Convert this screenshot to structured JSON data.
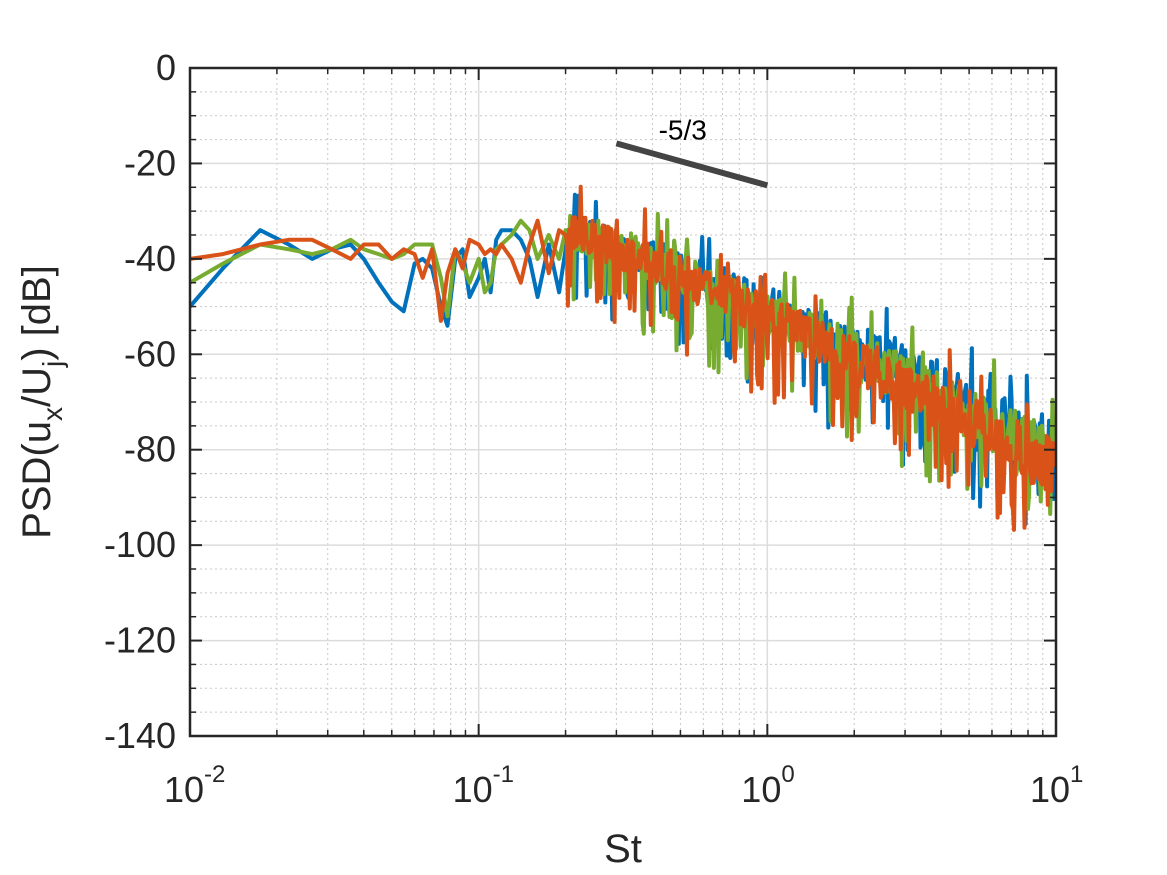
{
  "chart_data": {
    "type": "line",
    "title": "",
    "xlabel": "St",
    "ylabel": "PSD(u_x/U_j) [dB]",
    "ylabel_parts": {
      "prefix": "PSD(u",
      "sub1": "x",
      "mid": "/U",
      "sub2": "j",
      "suffix": ") [dB]"
    },
    "xscale": "log",
    "xlim": [
      0.01,
      10
    ],
    "ylim": [
      -140,
      0
    ],
    "grid": true,
    "minor_grid": true,
    "legend": "none",
    "x_ticks": [
      {
        "value": 0.01,
        "base": "10",
        "exp": "-2"
      },
      {
        "value": 0.1,
        "base": "10",
        "exp": "-1"
      },
      {
        "value": 1,
        "base": "10",
        "exp": "0"
      },
      {
        "value": 10,
        "base": "10",
        "exp": "1"
      }
    ],
    "y_ticks": [
      {
        "value": 0,
        "label": "0"
      },
      {
        "value": -20,
        "label": "-20"
      },
      {
        "value": -40,
        "label": "-40"
      },
      {
        "value": -60,
        "label": "-60"
      },
      {
        "value": -80,
        "label": "-80"
      },
      {
        "value": -100,
        "label": "-100"
      },
      {
        "value": -120,
        "label": "-120"
      },
      {
        "value": -140,
        "label": "-140"
      }
    ],
    "series": [
      {
        "color": "#0072BD",
        "x": [
          0.01,
          0.013,
          0.0175,
          0.022,
          0.0265,
          0.031,
          0.036,
          0.04,
          0.045,
          0.05,
          0.055,
          0.06,
          0.064,
          0.069,
          0.074,
          0.078,
          0.083,
          0.088,
          0.093,
          0.1,
          0.105,
          0.11,
          0.115,
          0.12,
          0.13,
          0.14,
          0.15,
          0.16,
          0.175,
          0.19,
          0.2
        ],
        "values": [
          -50,
          -42,
          -34,
          -37,
          -40,
          -38,
          -37,
          -40,
          -45,
          -49,
          -51,
          -41,
          -40,
          -42,
          -50,
          -54,
          -40,
          -38,
          -48,
          -44,
          -40,
          -47,
          -36,
          -34,
          -34,
          -36,
          -40,
          -48,
          -37,
          -47,
          -38
        ],
        "noise": {
          "x_start": 0.2,
          "x_end": 10,
          "points": 420,
          "center_start": -34,
          "center_end": -80,
          "amp_start": 4,
          "amp_end": 6,
          "dip_start": 12,
          "dip_end": 16,
          "seed": 11
        }
      },
      {
        "color": "#77AC30",
        "x": [
          0.01,
          0.013,
          0.0175,
          0.022,
          0.0265,
          0.031,
          0.036,
          0.04,
          0.045,
          0.05,
          0.055,
          0.06,
          0.064,
          0.069,
          0.074,
          0.078,
          0.083,
          0.088,
          0.093,
          0.1,
          0.105,
          0.11,
          0.115,
          0.12,
          0.13,
          0.14,
          0.15,
          0.16,
          0.175,
          0.19,
          0.2
        ],
        "values": [
          -45,
          -41,
          -37,
          -38,
          -39,
          -38,
          -36,
          -38,
          -39,
          -40,
          -39,
          -37,
          -37,
          -37,
          -44,
          -52,
          -38,
          -41,
          -45,
          -40,
          -47,
          -45,
          -38,
          -37,
          -35,
          -32,
          -34,
          -40,
          -35,
          -40,
          -34
        ],
        "noise": {
          "x_start": 0.2,
          "x_end": 10,
          "points": 420,
          "center_start": -34,
          "center_end": -82,
          "amp_start": 4,
          "amp_end": 6,
          "dip_start": 12,
          "dip_end": 16,
          "seed": 23
        }
      },
      {
        "color": "#D95319",
        "x": [
          0.01,
          0.013,
          0.0175,
          0.022,
          0.0265,
          0.031,
          0.036,
          0.04,
          0.045,
          0.05,
          0.055,
          0.06,
          0.064,
          0.069,
          0.074,
          0.078,
          0.083,
          0.088,
          0.093,
          0.1,
          0.105,
          0.11,
          0.115,
          0.12,
          0.13,
          0.14,
          0.15,
          0.16,
          0.175,
          0.19,
          0.2
        ],
        "values": [
          -40,
          -39,
          -37,
          -36,
          -36,
          -38,
          -40,
          -37,
          -37,
          -40,
          -38,
          -39,
          -44,
          -38,
          -53,
          -43,
          -38,
          -42,
          -36,
          -37,
          -39,
          -38,
          -39,
          -37,
          -40,
          -45,
          -37,
          -32,
          -43,
          -34,
          -35
        ],
        "noise": {
          "x_start": 0.2,
          "x_end": 10,
          "points": 420,
          "center_start": -34,
          "center_end": -84,
          "amp_start": 4,
          "amp_end": 6,
          "dip_start": 12,
          "dip_end": 16,
          "seed": 37
        }
      }
    ],
    "annotations": [
      {
        "type": "slope_line",
        "label": "-5/3",
        "x1": 0.3,
        "y1": -15.8,
        "x2": 1.0,
        "y2": -24.6,
        "color": "#444444",
        "label_x": 0.42,
        "label_y": -15
      }
    ]
  }
}
